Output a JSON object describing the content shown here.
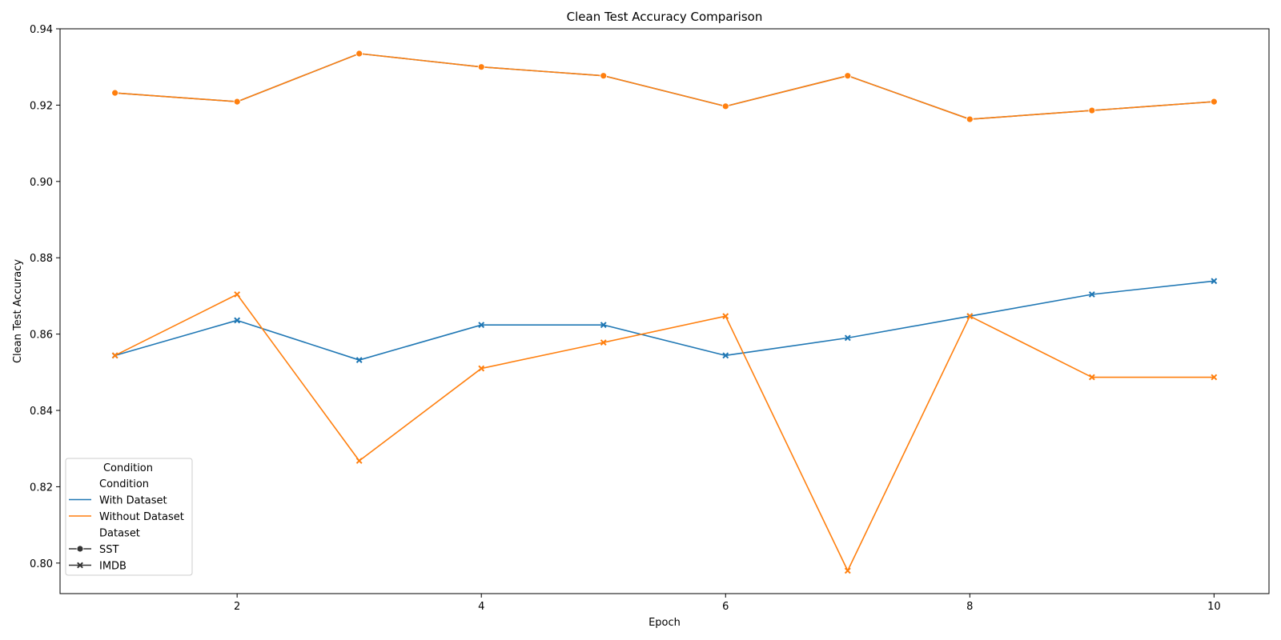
{
  "chart_data": {
    "type": "line",
    "title": "Clean Test Accuracy Comparison",
    "xlabel": "Epoch",
    "ylabel": "Clean Test Accuracy",
    "xlim": [
      0.55,
      10.45
    ],
    "ylim": [
      0.792,
      0.94
    ],
    "xticks": [
      2,
      4,
      6,
      8,
      10
    ],
    "yticks": [
      0.8,
      0.82,
      0.84,
      0.86,
      0.88,
      0.9,
      0.92,
      0.94
    ],
    "ytick_labels": [
      "0.80",
      "0.82",
      "0.84",
      "0.86",
      "0.88",
      "0.90",
      "0.92",
      "0.94"
    ],
    "grid": false,
    "x": [
      1,
      2,
      3,
      4,
      5,
      6,
      7,
      8,
      9,
      10
    ],
    "series": [
      {
        "condition": "With Dataset",
        "dataset": "SST",
        "color": "#1f77b4",
        "marker": "circle",
        "values": [
          0.9232,
          0.9209,
          0.9335,
          0.93,
          0.9277,
          0.9197,
          0.9277,
          0.9163,
          0.9186,
          0.9209
        ]
      },
      {
        "condition": "Without Dataset",
        "dataset": "SST",
        "color": "#ff7f0e",
        "marker": "circle",
        "values": [
          0.9232,
          0.9209,
          0.9335,
          0.93,
          0.9277,
          0.9197,
          0.9277,
          0.9163,
          0.9186,
          0.9209
        ]
      },
      {
        "condition": "With Dataset",
        "dataset": "IMDB",
        "color": "#1f77b4",
        "marker": "x",
        "values": [
          0.8544,
          0.8636,
          0.8532,
          0.8624,
          0.8624,
          0.8544,
          0.859,
          0.8647,
          0.8704,
          0.8739
        ]
      },
      {
        "condition": "Without Dataset",
        "dataset": "IMDB",
        "color": "#ff7f0e",
        "marker": "x",
        "values": [
          0.8544,
          0.8704,
          0.8268,
          0.851,
          0.8578,
          0.8647,
          0.798,
          0.8647,
          0.8487,
          0.8487
        ]
      }
    ],
    "legend": {
      "placement": "lower-left",
      "title": "Condition",
      "sections": [
        {
          "header": "Condition",
          "items": [
            {
              "label": "With Dataset",
              "color": "#1f77b4",
              "marker": "none"
            },
            {
              "label": "Without Dataset",
              "color": "#ff7f0e",
              "marker": "none"
            }
          ]
        },
        {
          "header": "Dataset",
          "items": [
            {
              "label": "SST",
              "color": "#333333",
              "marker": "circle"
            },
            {
              "label": "IMDB",
              "color": "#333333",
              "marker": "x"
            }
          ]
        }
      ]
    }
  }
}
